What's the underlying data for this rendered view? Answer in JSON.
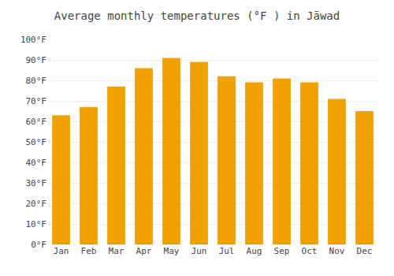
{
  "chart_data": {
    "type": "bar",
    "title": "Average monthly temperatures (°F ) in Jāwad",
    "categories": [
      "Jan",
      "Feb",
      "Mar",
      "Apr",
      "May",
      "Jun",
      "Jul",
      "Aug",
      "Sep",
      "Oct",
      "Nov",
      "Dec"
    ],
    "values": [
      63,
      67,
      77,
      86,
      91,
      89,
      82,
      79,
      81,
      79,
      71,
      65
    ],
    "color": "#F0A000",
    "ylim": [
      0,
      100
    ],
    "yticks": [
      {
        "value": 0,
        "label": "0°F"
      },
      {
        "value": 10,
        "label": "10°F"
      },
      {
        "value": 20,
        "label": "20°F"
      },
      {
        "value": 30,
        "label": "30°F"
      },
      {
        "value": 40,
        "label": "40°F"
      },
      {
        "value": 50,
        "label": "50°F"
      },
      {
        "value": 60,
        "label": "60°F"
      },
      {
        "value": 70,
        "label": "70°F"
      },
      {
        "value": 80,
        "label": "80°F"
      },
      {
        "value": 90,
        "label": "90°F"
      },
      {
        "value": 100,
        "label": "100°F"
      }
    ],
    "grid": true
  }
}
